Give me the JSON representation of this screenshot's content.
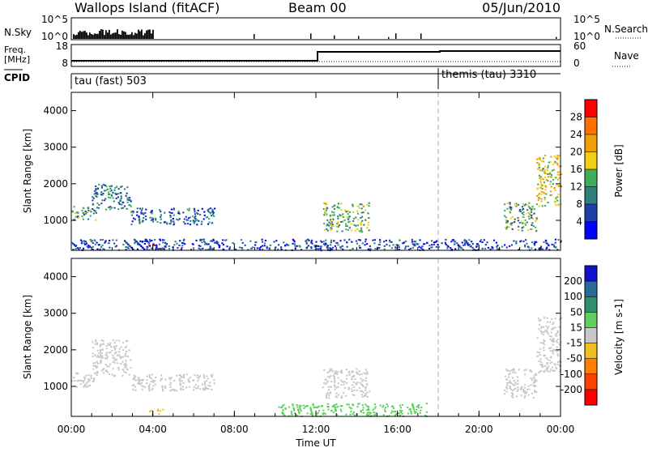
{
  "header": {
    "title": "Wallops Island (fitACF)",
    "beam": "Beam 00",
    "date": "05/Jun/2010"
  },
  "top_panels": {
    "nsky_label": "N.Sky",
    "nsky_ticks": [
      "10^5",
      "10^0"
    ],
    "nsearch_label": "N.Search",
    "nsearch_ticks": [
      "10^5",
      "10^0"
    ],
    "freq_label": "Freq.",
    "freq_unit": "[MHz]",
    "freq_ticks": [
      "18",
      "8"
    ],
    "nave_label": "Nave",
    "nave_ticks": [
      "60",
      "0"
    ],
    "cpid_label": "CPID",
    "cpid_segments": [
      {
        "label": "tau (fast) 503",
        "start_hour": 0
      },
      {
        "label": "themis (tau) 3310",
        "start_hour": 18
      }
    ]
  },
  "chart_data": [
    {
      "type": "heatmap",
      "panel": "power",
      "ylabel": "Slant Range [km]",
      "yticks": [
        "1000",
        "2000",
        "3000",
        "4000"
      ],
      "ylim": [
        180,
        4500
      ],
      "xlim": [
        0,
        24
      ],
      "colorbar_label": "Power [dB]",
      "colorbar_ticks": [
        "4",
        "8",
        "12",
        "16",
        "20",
        "24",
        "28"
      ],
      "colorbar_colors": [
        "#0000ff",
        "#1f3fa8",
        "#2f7f7f",
        "#3fae5c",
        "#f0d010",
        "#f0a000",
        "#ff7000",
        "#ff0000"
      ],
      "vrange": [
        0,
        32
      ],
      "regions": [
        {
          "t0": 0.0,
          "t1": 1.2,
          "r0": 1000,
          "r1": 1400,
          "v": 12
        },
        {
          "t0": 1.0,
          "t1": 2.9,
          "r0": 1300,
          "r1": 2000,
          "v": 10
        },
        {
          "t0": 2.9,
          "t1": 7.0,
          "r0": 900,
          "r1": 1350,
          "v": 8
        },
        {
          "t0": 3.7,
          "t1": 4.5,
          "r0": 250,
          "r1": 350,
          "v": 30
        },
        {
          "t0": 0.0,
          "t1": 24.0,
          "r0": 200,
          "r1": 500,
          "v": 6
        },
        {
          "t0": 12.3,
          "t1": 14.6,
          "r0": 700,
          "r1": 1500,
          "v": 14
        },
        {
          "t0": 21.2,
          "t1": 22.8,
          "r0": 700,
          "r1": 1500,
          "v": 12
        },
        {
          "t0": 22.8,
          "t1": 24.0,
          "r0": 1400,
          "r1": 2800,
          "v": 18
        }
      ]
    },
    {
      "type": "heatmap",
      "panel": "velocity",
      "ylabel": "Slant Range [km]",
      "yticks": [
        "1000",
        "2000",
        "3000",
        "4000"
      ],
      "ylim": [
        180,
        4500
      ],
      "xlim": [
        0,
        24
      ],
      "colorbar_label": "Velocity [m s-1]",
      "colorbar_ticks": [
        "200",
        "100",
        "50",
        "15",
        "-15",
        "-50",
        "-100",
        "-200"
      ],
      "colorbar_colors": [
        "#1010d0",
        "#2a6a9a",
        "#2f8f6f",
        "#5fd05f",
        "#c8c8c8",
        "#f0c020",
        "#ff8000",
        "#ff4000",
        "#ff0000"
      ],
      "vrange": [
        -250,
        250
      ],
      "regions": [
        {
          "t0": 0.0,
          "t1": 1.2,
          "r0": 1000,
          "r1": 1400,
          "v": 0
        },
        {
          "t0": 1.0,
          "t1": 2.9,
          "r0": 1300,
          "r1": 2300,
          "v": 0
        },
        {
          "t0": 2.9,
          "t1": 7.0,
          "r0": 900,
          "r1": 1350,
          "v": 0
        },
        {
          "t0": 3.7,
          "t1": 4.5,
          "r0": 250,
          "r1": 400,
          "v": -60
        },
        {
          "t0": 10.0,
          "t1": 17.5,
          "r0": 200,
          "r1": 550,
          "v": 60
        },
        {
          "t0": 12.3,
          "t1": 14.6,
          "r0": 700,
          "r1": 1500,
          "v": 0
        },
        {
          "t0": 21.2,
          "t1": 22.8,
          "r0": 700,
          "r1": 1500,
          "v": 0
        },
        {
          "t0": 22.8,
          "t1": 24.0,
          "r0": 1400,
          "r1": 2900,
          "v": 0
        }
      ]
    }
  ],
  "time_axis": {
    "xlabel": "Time UT",
    "ticks": [
      "00:00",
      "04:00",
      "08:00",
      "12:00",
      "16:00",
      "20:00",
      "00:00"
    ]
  }
}
